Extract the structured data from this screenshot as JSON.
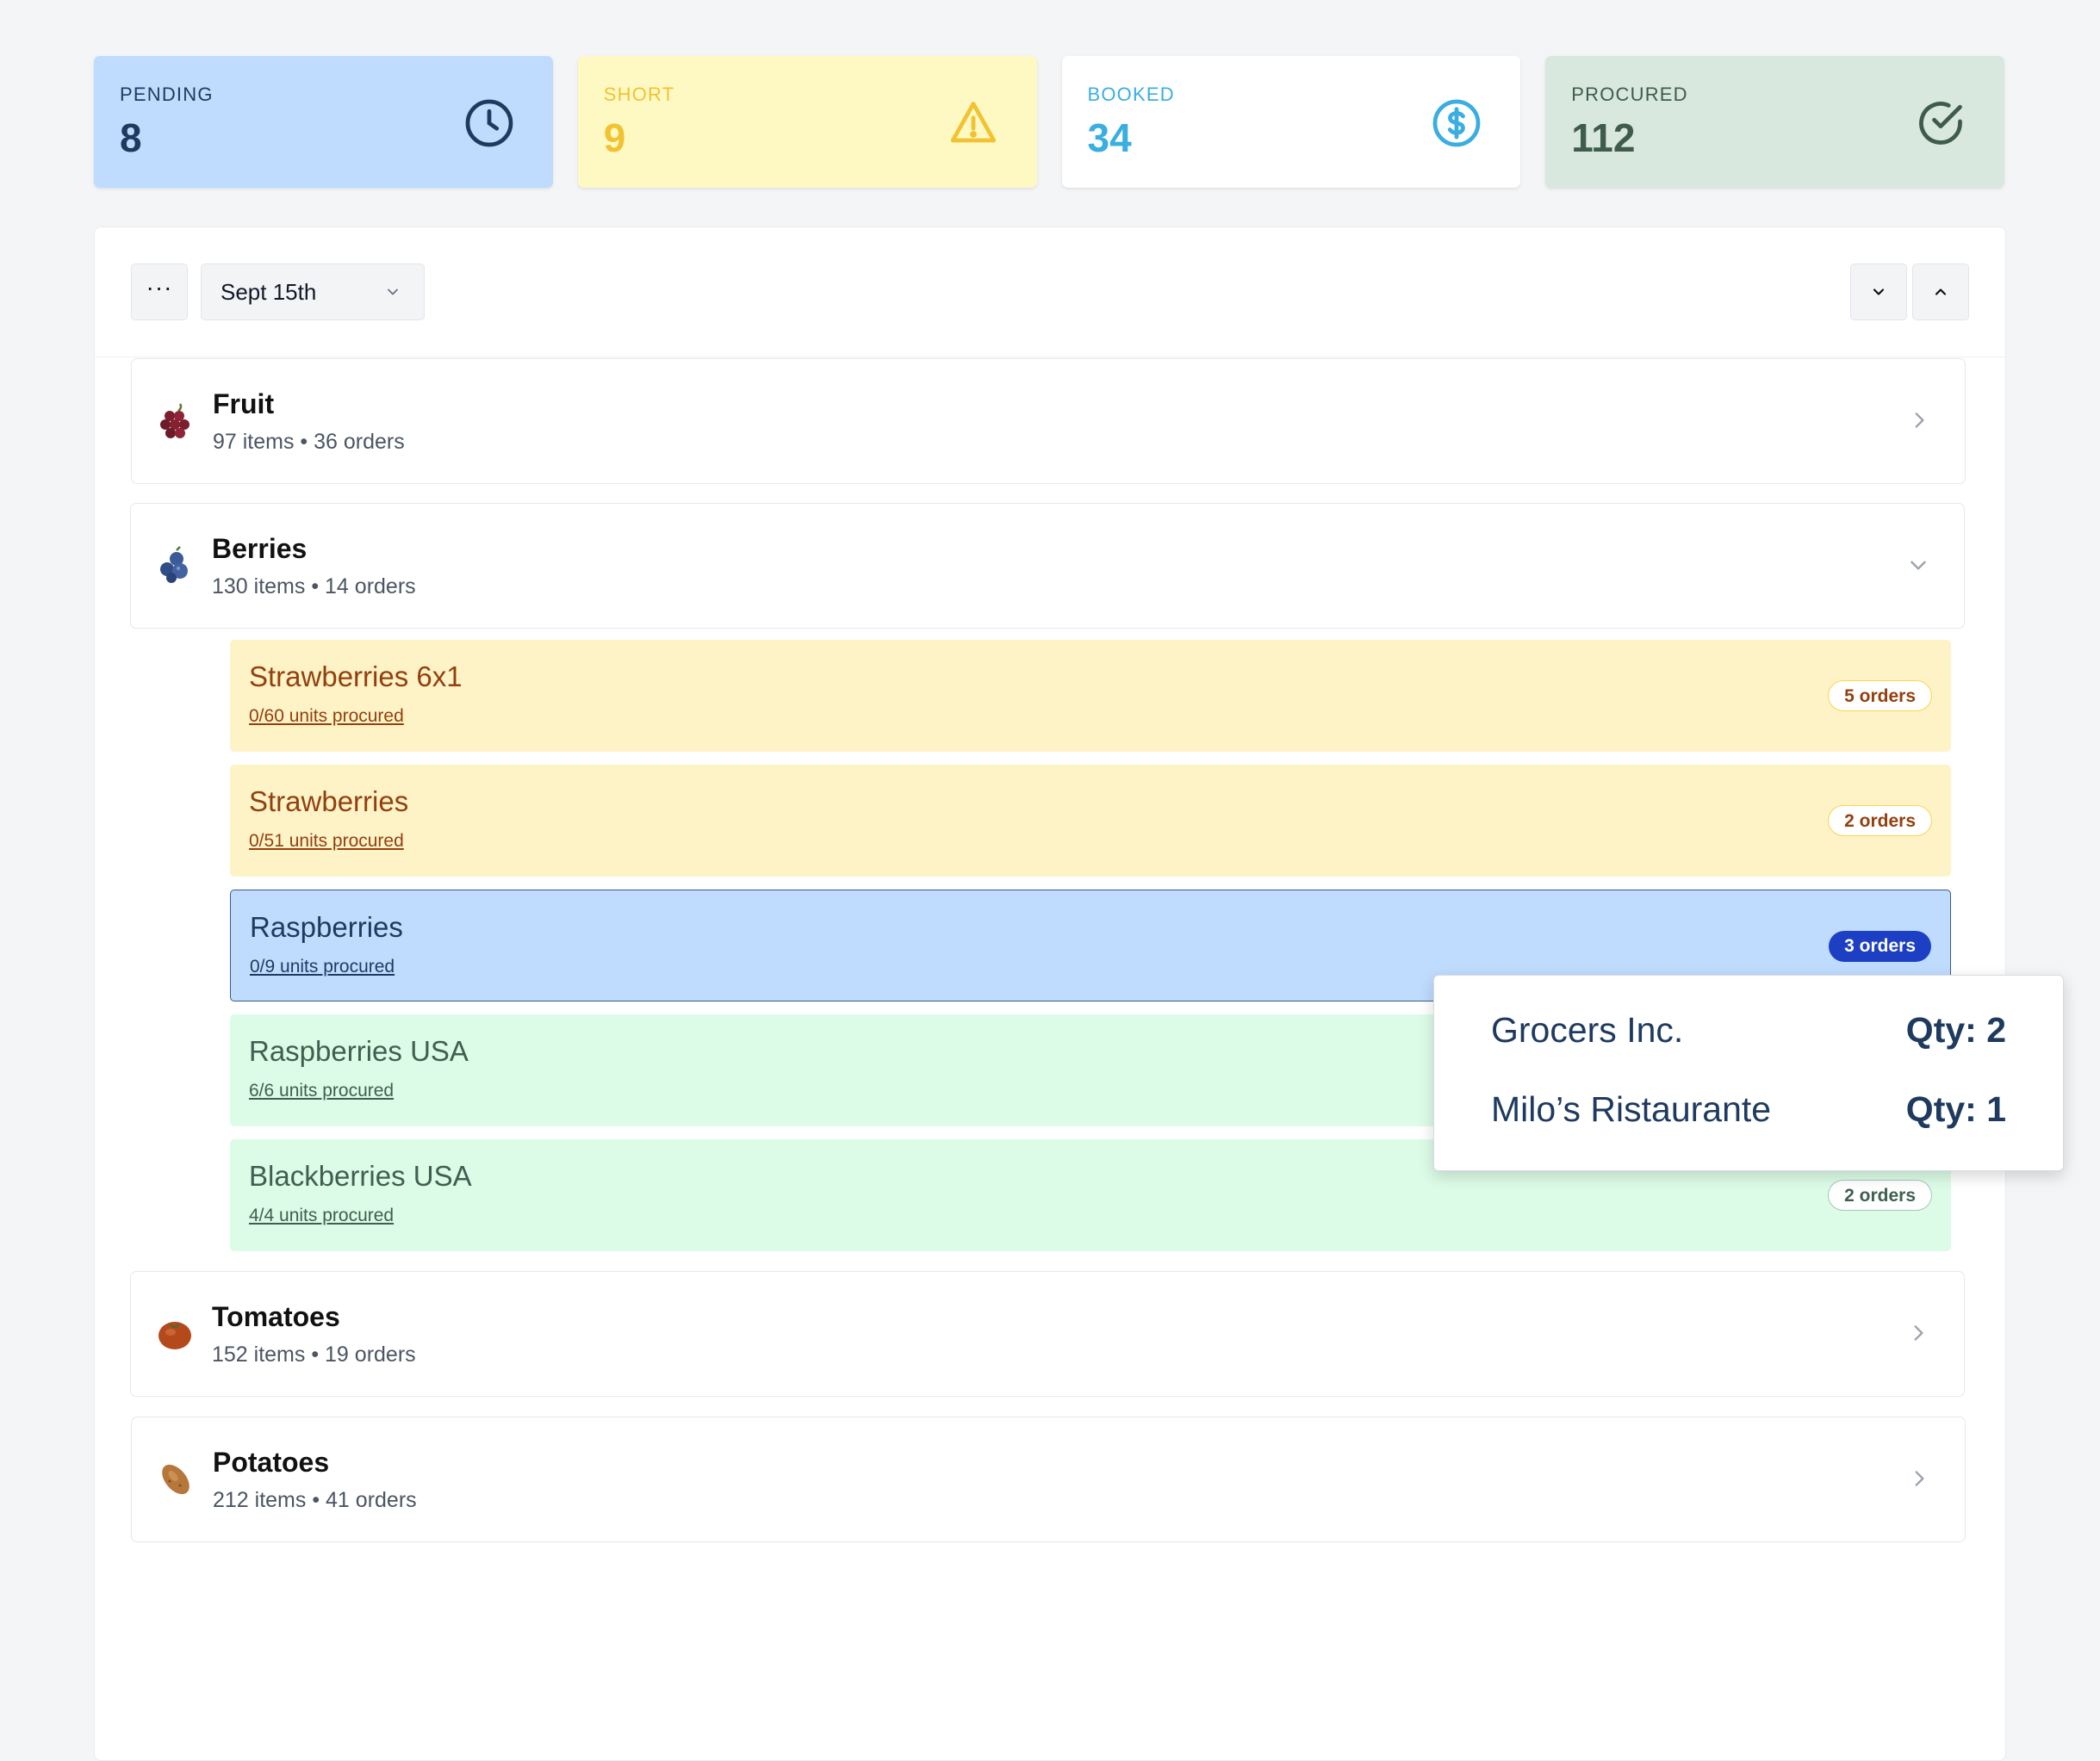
{
  "stats": {
    "pending": {
      "label": "PENDING",
      "value": "8",
      "icon": "clock-icon"
    },
    "short": {
      "label": "SHORT",
      "value": "9",
      "icon": "warning-icon"
    },
    "booked": {
      "label": "BOOKED",
      "value": "34",
      "icon": "dollar-circle-icon"
    },
    "procured": {
      "label": "PROCURED",
      "value": "112",
      "icon": "check-circle-icon"
    }
  },
  "toolbar": {
    "more_label": "···",
    "date_value": "Sept 15th"
  },
  "categories": [
    {
      "name": "Fruit",
      "meta": "97 items • 36 orders",
      "emoji": "grapes-icon",
      "expanded": false
    },
    {
      "name": "Berries",
      "meta": "130 items • 14 orders",
      "emoji": "blueberries-icon",
      "expanded": true
    },
    {
      "name": "Tomatoes",
      "meta": "152 items • 19 orders",
      "emoji": "tomato-icon",
      "expanded": false
    },
    {
      "name": "Potatoes",
      "meta": "212 items • 41 orders",
      "emoji": "potato-icon",
      "expanded": false
    }
  ],
  "berries_items": [
    {
      "name": "Strawberries 6x1",
      "procured": "0/60 units procured",
      "orders": "5 orders",
      "status": "short"
    },
    {
      "name": "Strawberries",
      "procured": "0/51 units procured",
      "orders": "2 orders",
      "status": "short"
    },
    {
      "name": "Raspberries",
      "procured": "0/9 units procured",
      "orders": "3 orders",
      "status": "pending"
    },
    {
      "name": "Raspberries USA",
      "procured": "6/6 units procured",
      "orders": "",
      "status": "procured"
    },
    {
      "name": "Blackberries USA",
      "procured": "4/4 units procured",
      "orders": "2 orders",
      "status": "procured"
    }
  ],
  "popover": {
    "rows": [
      {
        "customer": "Grocers Inc.",
        "qty": "Qty: 2"
      },
      {
        "customer": "Milo’s Ristaurante",
        "qty": "Qty: 1"
      }
    ]
  },
  "colors": {
    "pending": "#bfdbfe",
    "short": "#fef9c3",
    "booked": "#ffffff",
    "procured": "#d8e8de",
    "active_badge": "#1d3fc4"
  }
}
